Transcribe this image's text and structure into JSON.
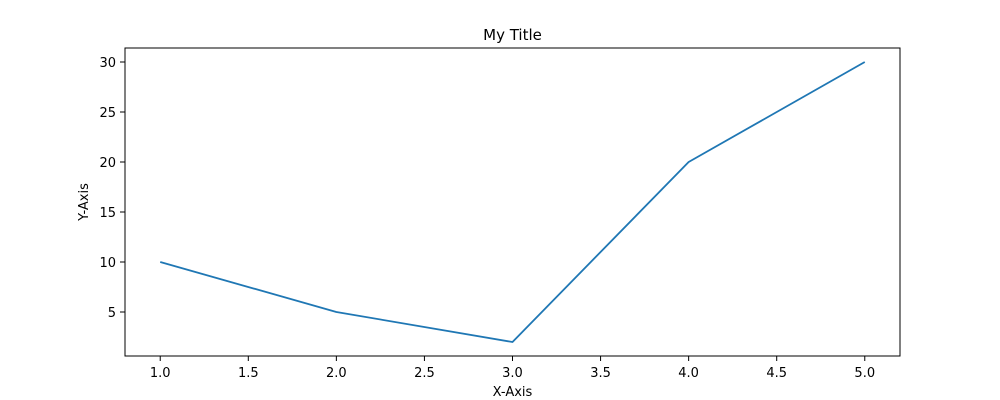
{
  "chart_data": {
    "type": "line",
    "title": "My Title",
    "xlabel": "X-Axis",
    "ylabel": "Y-Axis",
    "xlim": [
      0.8,
      5.2
    ],
    "ylim": [
      0.6,
      31.4
    ],
    "xticks": [
      1.0,
      1.5,
      2.0,
      2.5,
      3.0,
      3.5,
      4.0,
      4.5,
      5.0
    ],
    "xtick_labels": [
      "1.0",
      "1.5",
      "2.0",
      "2.5",
      "3.0",
      "3.5",
      "4.0",
      "4.5",
      "5.0"
    ],
    "yticks": [
      5,
      10,
      15,
      20,
      25,
      30
    ],
    "ytick_labels": [
      "5",
      "10",
      "15",
      "20",
      "25",
      "30"
    ],
    "grid": false,
    "legend": "none",
    "series": [
      {
        "color": "#1f77b4",
        "x": [
          1.0,
          2.0,
          3.0,
          4.0,
          5.0
        ],
        "y": [
          10,
          5,
          2,
          20,
          30
        ]
      }
    ]
  }
}
